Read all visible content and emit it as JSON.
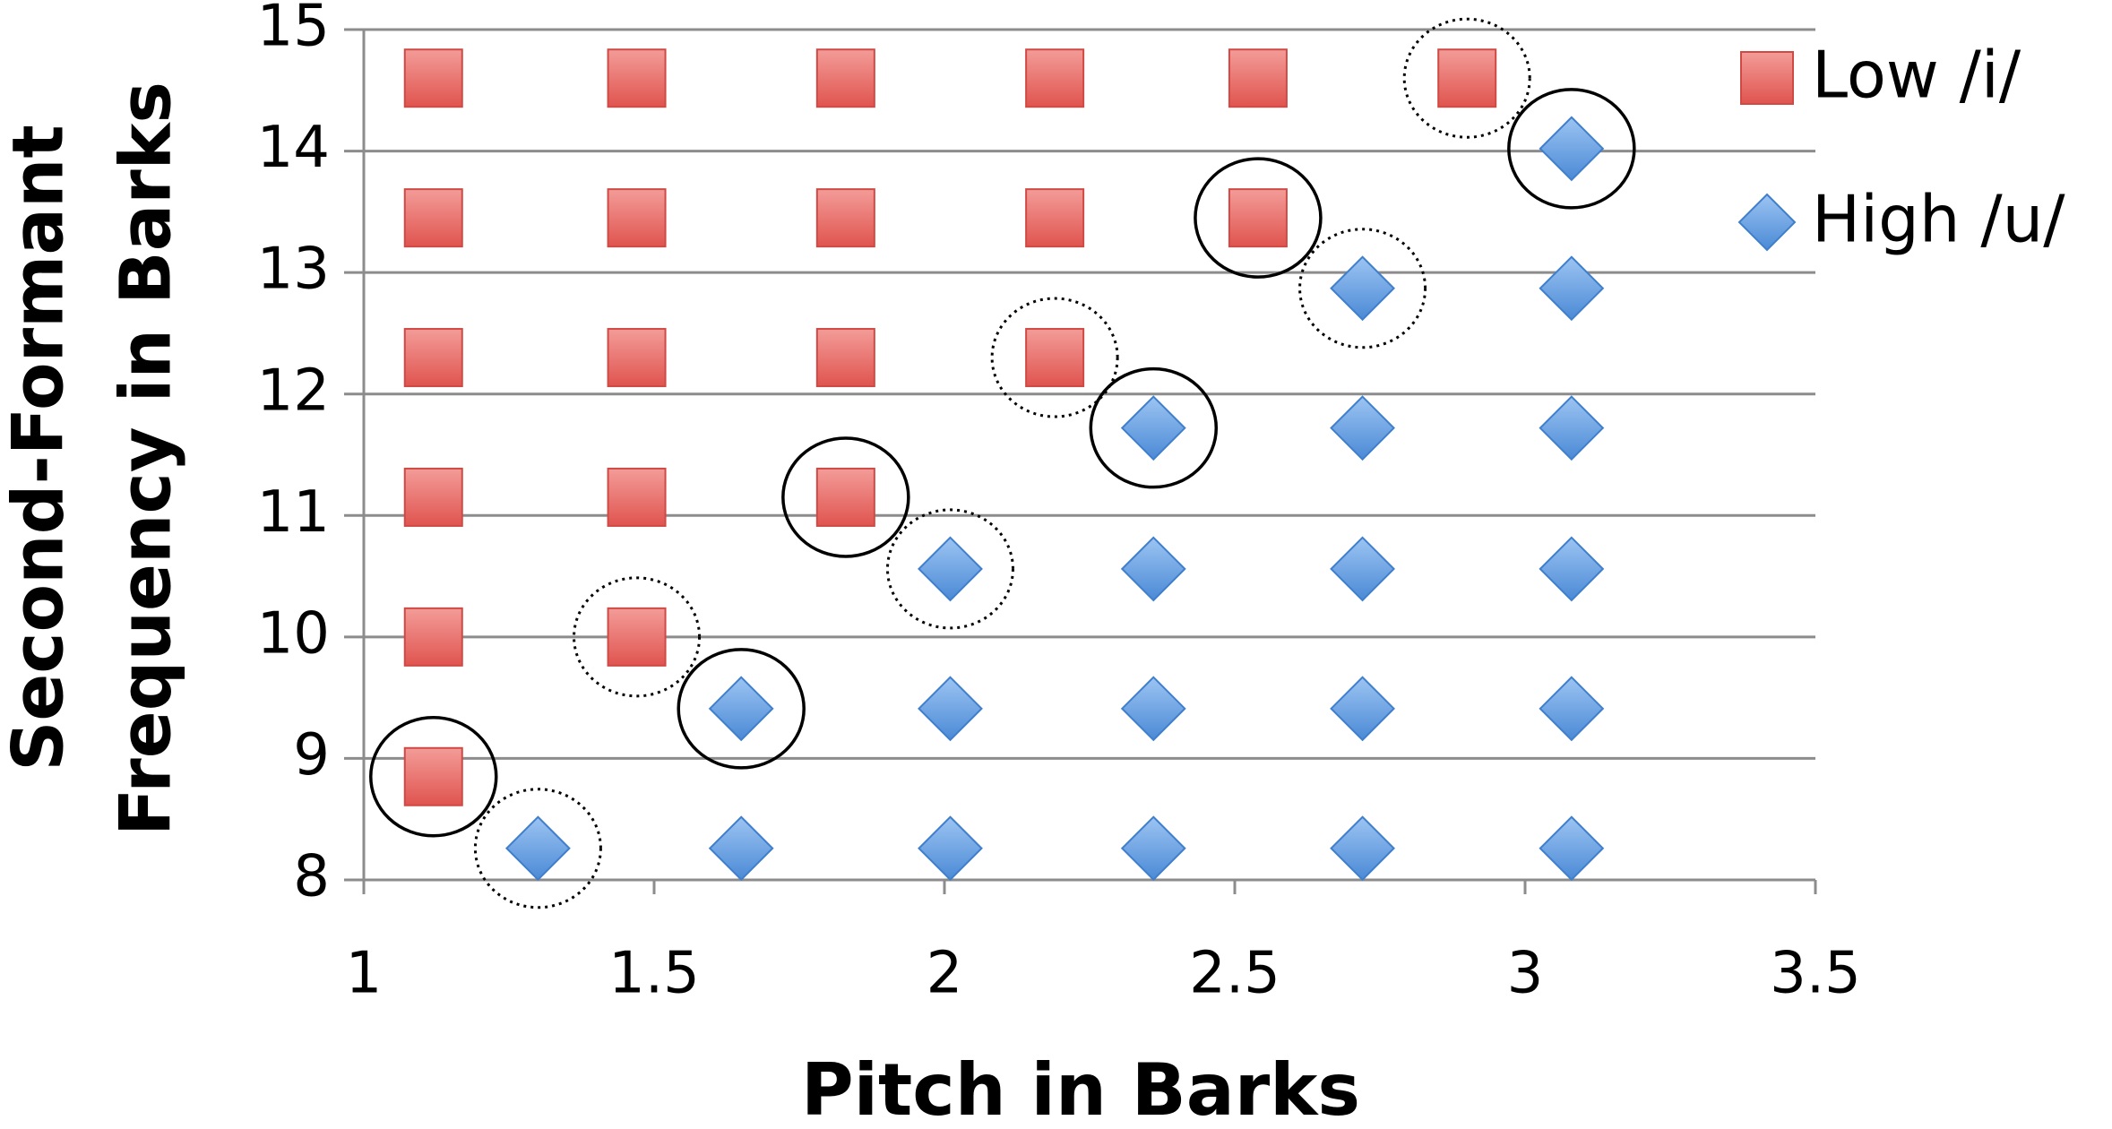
{
  "chart_data": {
    "type": "scatter",
    "xlabel": "Pitch in Barks",
    "ylabel": [
      "Second-Formant",
      "Frequency in Barks"
    ],
    "xlim": [
      1,
      3.5
    ],
    "xticks": [
      1,
      1.5,
      2,
      2.5,
      3,
      3.5
    ],
    "ylim": [
      8,
      15
    ],
    "yticks": [
      8,
      9,
      10,
      11,
      12,
      13,
      14,
      15
    ],
    "grid": true,
    "legend": "top-right",
    "series": [
      {
        "name": "Low /i/",
        "color": "#e8625e",
        "marker": "square",
        "x": [
          1.12,
          1.12,
          1.12,
          1.12,
          1.12,
          1.12,
          1.47,
          1.47,
          1.47,
          1.47,
          1.47,
          1.83,
          1.83,
          1.83,
          1.83,
          2.19,
          2.19,
          2.19,
          2.54,
          2.54,
          2.9
        ],
        "values": [
          14.6,
          13.45,
          12.3,
          11.15,
          10.0,
          8.85,
          14.6,
          13.45,
          12.3,
          11.15,
          10.0,
          14.6,
          13.45,
          12.3,
          11.15,
          14.6,
          13.45,
          12.3,
          14.6,
          13.45,
          14.6
        ]
      },
      {
        "name": "High /u/",
        "color": "#5b9be0",
        "marker": "diamond",
        "x": [
          1.3,
          1.65,
          1.65,
          2.01,
          2.01,
          2.01,
          2.36,
          2.36,
          2.36,
          2.36,
          2.72,
          2.72,
          2.72,
          2.72,
          2.72,
          3.08,
          3.08,
          3.08,
          3.08,
          3.08,
          3.08
        ],
        "values": [
          8.26,
          8.26,
          9.41,
          8.26,
          9.41,
          10.56,
          8.26,
          9.41,
          10.56,
          11.72,
          8.26,
          9.41,
          10.56,
          11.72,
          12.87,
          8.26,
          9.41,
          10.56,
          11.72,
          12.87,
          14.02
        ]
      }
    ]
  }
}
